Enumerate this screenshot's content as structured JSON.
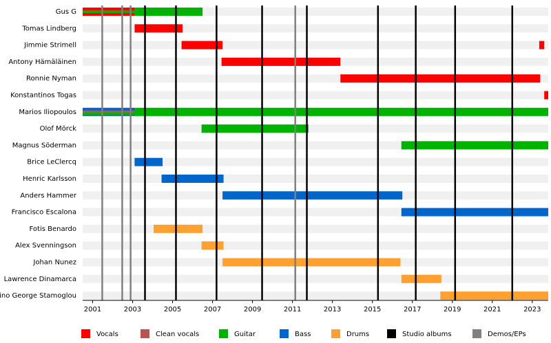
{
  "chart_data": {
    "type": "timeline",
    "roles": [
      {
        "name": "Vocals",
        "color": "#ff0000"
      },
      {
        "name": "Clean vocals",
        "color": "#b85450"
      },
      {
        "name": "Guitar",
        "color": "#00b300"
      },
      {
        "name": "Bass",
        "color": "#0066cc"
      },
      {
        "name": "Drums",
        "color": "#ffa030"
      }
    ],
    "events": [
      {
        "name": "Studio albums",
        "color": "#000000",
        "x": [
          2003.62,
          2005.17,
          2007.2,
          2009.48,
          2011.72,
          2015.28,
          2017.17,
          2019.14,
          2022.0
        ]
      },
      {
        "name": "Demos/EPs",
        "color": "#808080",
        "x": [
          2001.48,
          2002.48,
          2002.9,
          2011.14
        ]
      }
    ],
    "members": [
      {
        "name": "Gus G",
        "periods": [
          {
            "role": "Vocals",
            "start": 2000.5,
            "end": 2003.1
          },
          {
            "role": "Guitar",
            "start": 2000.5,
            "end": 2006.5
          }
        ]
      },
      {
        "name": "Tomas Lindberg",
        "periods": [
          {
            "role": "Vocals",
            "start": 2003.1,
            "end": 2005.5
          }
        ]
      },
      {
        "name": "Jimmie Strimell",
        "periods": [
          {
            "role": "Vocals",
            "start": 2005.45,
            "end": 2007.5
          },
          {
            "role": "Vocals",
            "start": 2023.35,
            "end": 2023.6
          }
        ]
      },
      {
        "name": "Antony Hämäläinen",
        "periods": [
          {
            "role": "Vocals",
            "start": 2007.45,
            "end": 2013.4
          }
        ]
      },
      {
        "name": "Ronnie Nyman",
        "periods": [
          {
            "role": "Vocals",
            "start": 2013.4,
            "end": 2023.4
          }
        ]
      },
      {
        "name": "Konstantinos Togas",
        "periods": [
          {
            "role": "Vocals",
            "start": 2023.6,
            "end": 2023.8
          }
        ]
      },
      {
        "name": "Marios Iliopoulos",
        "periods": [
          {
            "role": "Bass",
            "start": 2000.5,
            "end": 2003.1
          },
          {
            "role": "Clean vocals",
            "start": 2000.5,
            "end": 2003.1
          },
          {
            "role": "Guitar",
            "start": 2000.5,
            "end": 2023.8
          }
        ]
      },
      {
        "name": "Olof Mörck",
        "periods": [
          {
            "role": "Guitar",
            "start": 2006.45,
            "end": 2011.8
          }
        ]
      },
      {
        "name": "Magnus Söderman",
        "periods": [
          {
            "role": "Guitar",
            "start": 2016.45,
            "end": 2023.8
          }
        ]
      },
      {
        "name": "Brice LeClercq",
        "periods": [
          {
            "role": "Bass",
            "start": 2003.1,
            "end": 2004.5
          }
        ]
      },
      {
        "name": "Henric Karlsson",
        "periods": [
          {
            "role": "Bass",
            "start": 2004.45,
            "end": 2007.55
          }
        ]
      },
      {
        "name": "Anders Hammer",
        "periods": [
          {
            "role": "Bass",
            "start": 2007.5,
            "end": 2016.5
          }
        ]
      },
      {
        "name": "Francisco Escalona",
        "periods": [
          {
            "role": "Bass",
            "start": 2016.45,
            "end": 2023.8
          }
        ]
      },
      {
        "name": "Fotis Benardo",
        "periods": [
          {
            "role": "Drums",
            "start": 2004.05,
            "end": 2006.5
          }
        ]
      },
      {
        "name": "Alex Svenningson",
        "periods": [
          {
            "role": "Drums",
            "start": 2006.45,
            "end": 2007.55
          }
        ]
      },
      {
        "name": "Johan Nunez",
        "periods": [
          {
            "role": "Drums",
            "start": 2007.5,
            "end": 2016.4
          }
        ]
      },
      {
        "name": "Lawrence Dinamarca",
        "periods": [
          {
            "role": "Drums",
            "start": 2016.45,
            "end": 2018.45
          }
        ]
      },
      {
        "name": "Dino George Stamoglou",
        "periods": [
          {
            "role": "Drums",
            "start": 2018.4,
            "end": 2023.8
          }
        ]
      }
    ],
    "xlim": [
      2000.5,
      2023.8
    ],
    "xticks": [
      2001,
      2003,
      2005,
      2007,
      2009,
      2011,
      2013,
      2015,
      2017,
      2019,
      2021,
      2023
    ]
  }
}
